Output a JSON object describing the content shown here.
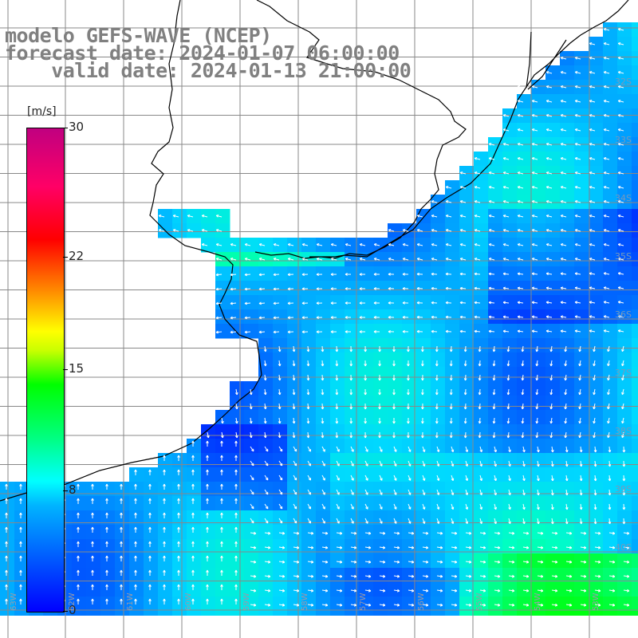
{
  "title": {
    "line1": "modelo GEFS-WAVE (NCEP)",
    "line2": "forecast date: 2024-01-07 06:00:00",
    "line3": "    valid date: 2024-01-13 21:00:00"
  },
  "colorbar": {
    "unit": "[m/s]",
    "ticks": [
      {
        "value": "30",
        "frac": 1.0
      },
      {
        "value": "22",
        "frac": 0.733
      },
      {
        "value": "15",
        "frac": 0.5
      },
      {
        "value": "8",
        "frac": 0.25
      },
      {
        "value": "0",
        "frac": 0.0
      }
    ]
  },
  "lat_labels": [
    {
      "text": "32S"
    },
    {
      "text": "33S"
    },
    {
      "text": "34S"
    },
    {
      "text": "35S"
    },
    {
      "text": "36S"
    },
    {
      "text": "37S"
    },
    {
      "text": "38S"
    },
    {
      "text": "39S"
    },
    {
      "text": "40S"
    }
  ],
  "lon_labels": [
    {
      "text": "63W"
    },
    {
      "text": "62W"
    },
    {
      "text": "61W"
    },
    {
      "text": "60W"
    },
    {
      "text": "59W"
    },
    {
      "text": "58W"
    },
    {
      "text": "57W"
    },
    {
      "text": "56W"
    },
    {
      "text": "55W"
    },
    {
      "text": "54W"
    },
    {
      "text": "53W"
    }
  ],
  "colors": {
    "land": "#ffffff",
    "grid": "#888888",
    "coast": "#000000",
    "arrows": "#ffffff"
  }
}
